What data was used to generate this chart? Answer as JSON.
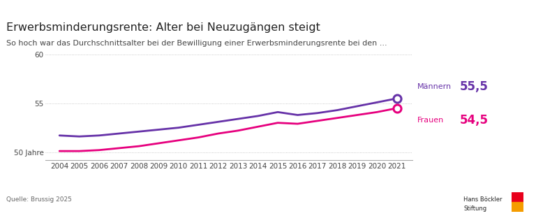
{
  "title": "Erwerbsminderungsrente: Alter bei Neuzugängen steigt",
  "subtitle": "So hoch war das Durchschnittsalter bei der Bewilligung einer Erwerbsminderungsrente bei den ...",
  "source": "Quelle: Brussig 2025",
  "years": [
    2004,
    2005,
    2006,
    2007,
    2008,
    2009,
    2010,
    2011,
    2012,
    2013,
    2014,
    2015,
    2016,
    2017,
    2018,
    2019,
    2020,
    2021
  ],
  "maenner": [
    51.7,
    51.6,
    51.7,
    51.9,
    52.1,
    52.3,
    52.5,
    52.8,
    53.1,
    53.4,
    53.7,
    54.1,
    53.8,
    54.0,
    54.3,
    54.7,
    55.1,
    55.5
  ],
  "frauen": [
    50.1,
    50.1,
    50.2,
    50.4,
    50.6,
    50.9,
    51.2,
    51.5,
    51.9,
    52.2,
    52.6,
    53.0,
    52.9,
    53.2,
    53.5,
    53.8,
    54.1,
    54.5
  ],
  "maenner_color": "#6632a8",
  "frauen_color": "#e6007e",
  "maenner_label": "Männern",
  "frauen_label": "Frauen",
  "maenner_value_label": "55,5",
  "frauen_value_label": "54,5",
  "yticks": [
    50,
    55,
    60
  ],
  "ytick_labels": [
    "50 Jahre",
    "55",
    "60"
  ],
  "ylim": [
    49.2,
    61.5
  ],
  "background_color": "#ffffff",
  "top_band_color": "#d6eef5",
  "grid_color": "#bbbbbb",
  "line_width": 2.0,
  "marker_size": 8,
  "title_fontsize": 11.5,
  "subtitle_fontsize": 8.0,
  "hbf_text": "Hans Böckler\nStiftung",
  "hbf_red": "#e8001c",
  "hbf_orange": "#f59c00",
  "separator_color": "#cccccc"
}
